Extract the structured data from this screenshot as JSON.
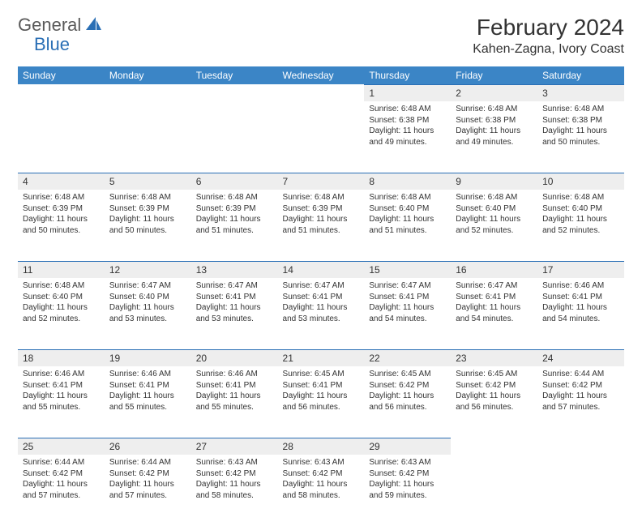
{
  "logo": {
    "text1": "General",
    "text2": "Blue"
  },
  "title": "February 2024",
  "location": "Kahen-Zagna, Ivory Coast",
  "colors": {
    "header_bg": "#3b85c6",
    "header_text": "#ffffff",
    "daynum_bg": "#eeeeee",
    "daynum_border": "#2a6fb5",
    "body_text": "#333333",
    "logo_gray": "#5a5a5a",
    "logo_blue": "#2a6fb5"
  },
  "weekdays": [
    "Sunday",
    "Monday",
    "Tuesday",
    "Wednesday",
    "Thursday",
    "Friday",
    "Saturday"
  ],
  "weeks": [
    [
      null,
      null,
      null,
      null,
      {
        "n": "1",
        "sr": "6:48 AM",
        "ss": "6:38 PM",
        "dl": "11 hours and 49 minutes."
      },
      {
        "n": "2",
        "sr": "6:48 AM",
        "ss": "6:38 PM",
        "dl": "11 hours and 49 minutes."
      },
      {
        "n": "3",
        "sr": "6:48 AM",
        "ss": "6:38 PM",
        "dl": "11 hours and 50 minutes."
      }
    ],
    [
      {
        "n": "4",
        "sr": "6:48 AM",
        "ss": "6:39 PM",
        "dl": "11 hours and 50 minutes."
      },
      {
        "n": "5",
        "sr": "6:48 AM",
        "ss": "6:39 PM",
        "dl": "11 hours and 50 minutes."
      },
      {
        "n": "6",
        "sr": "6:48 AM",
        "ss": "6:39 PM",
        "dl": "11 hours and 51 minutes."
      },
      {
        "n": "7",
        "sr": "6:48 AM",
        "ss": "6:39 PM",
        "dl": "11 hours and 51 minutes."
      },
      {
        "n": "8",
        "sr": "6:48 AM",
        "ss": "6:40 PM",
        "dl": "11 hours and 51 minutes."
      },
      {
        "n": "9",
        "sr": "6:48 AM",
        "ss": "6:40 PM",
        "dl": "11 hours and 52 minutes."
      },
      {
        "n": "10",
        "sr": "6:48 AM",
        "ss": "6:40 PM",
        "dl": "11 hours and 52 minutes."
      }
    ],
    [
      {
        "n": "11",
        "sr": "6:48 AM",
        "ss": "6:40 PM",
        "dl": "11 hours and 52 minutes."
      },
      {
        "n": "12",
        "sr": "6:47 AM",
        "ss": "6:40 PM",
        "dl": "11 hours and 53 minutes."
      },
      {
        "n": "13",
        "sr": "6:47 AM",
        "ss": "6:41 PM",
        "dl": "11 hours and 53 minutes."
      },
      {
        "n": "14",
        "sr": "6:47 AM",
        "ss": "6:41 PM",
        "dl": "11 hours and 53 minutes."
      },
      {
        "n": "15",
        "sr": "6:47 AM",
        "ss": "6:41 PM",
        "dl": "11 hours and 54 minutes."
      },
      {
        "n": "16",
        "sr": "6:47 AM",
        "ss": "6:41 PM",
        "dl": "11 hours and 54 minutes."
      },
      {
        "n": "17",
        "sr": "6:46 AM",
        "ss": "6:41 PM",
        "dl": "11 hours and 54 minutes."
      }
    ],
    [
      {
        "n": "18",
        "sr": "6:46 AM",
        "ss": "6:41 PM",
        "dl": "11 hours and 55 minutes."
      },
      {
        "n": "19",
        "sr": "6:46 AM",
        "ss": "6:41 PM",
        "dl": "11 hours and 55 minutes."
      },
      {
        "n": "20",
        "sr": "6:46 AM",
        "ss": "6:41 PM",
        "dl": "11 hours and 55 minutes."
      },
      {
        "n": "21",
        "sr": "6:45 AM",
        "ss": "6:41 PM",
        "dl": "11 hours and 56 minutes."
      },
      {
        "n": "22",
        "sr": "6:45 AM",
        "ss": "6:42 PM",
        "dl": "11 hours and 56 minutes."
      },
      {
        "n": "23",
        "sr": "6:45 AM",
        "ss": "6:42 PM",
        "dl": "11 hours and 56 minutes."
      },
      {
        "n": "24",
        "sr": "6:44 AM",
        "ss": "6:42 PM",
        "dl": "11 hours and 57 minutes."
      }
    ],
    [
      {
        "n": "25",
        "sr": "6:44 AM",
        "ss": "6:42 PM",
        "dl": "11 hours and 57 minutes."
      },
      {
        "n": "26",
        "sr": "6:44 AM",
        "ss": "6:42 PM",
        "dl": "11 hours and 57 minutes."
      },
      {
        "n": "27",
        "sr": "6:43 AM",
        "ss": "6:42 PM",
        "dl": "11 hours and 58 minutes."
      },
      {
        "n": "28",
        "sr": "6:43 AM",
        "ss": "6:42 PM",
        "dl": "11 hours and 58 minutes."
      },
      {
        "n": "29",
        "sr": "6:43 AM",
        "ss": "6:42 PM",
        "dl": "11 hours and 59 minutes."
      },
      null,
      null
    ]
  ],
  "labels": {
    "sunrise": "Sunrise:",
    "sunset": "Sunset:",
    "daylight": "Daylight:"
  }
}
